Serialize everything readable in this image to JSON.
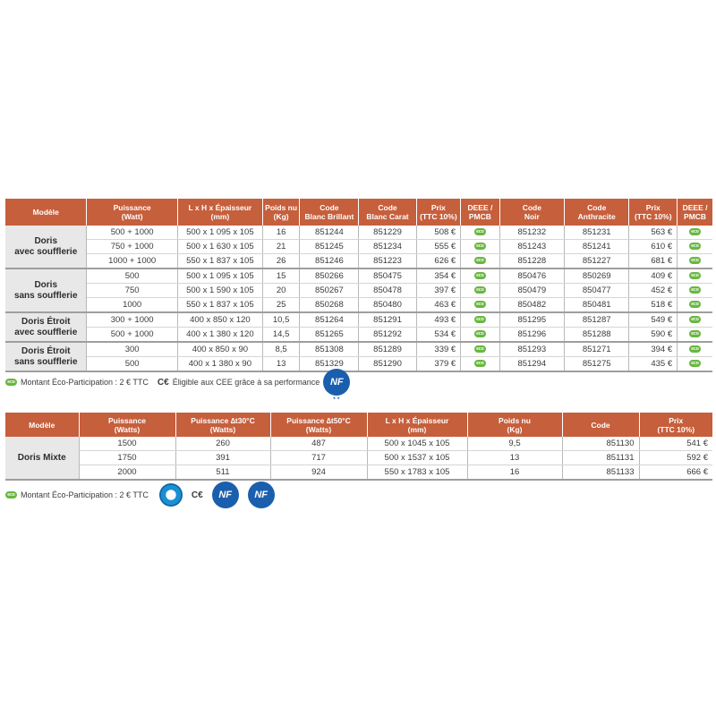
{
  "table1": {
    "headers": [
      "Modèle",
      "Puissance\n(Watt)",
      "L x H x Épaisseur\n(mm)",
      "Poids nu\n(Kg)",
      "Code\nBlanc Brillant",
      "Code\nBlanc Carat",
      "Prix\n(TTC 10%)",
      "DEEE /\nPMCB",
      "Code\nNoir",
      "Code\nAnthracite",
      "Prix\n(TTC 10%)",
      "DEEE /\nPMCB"
    ],
    "groups": [
      {
        "model": "Doris\navec soufflerie",
        "rows": [
          [
            "500 + 1000",
            "500 x 1 095 x 105",
            "16",
            "851244",
            "851229",
            "508 €",
            "851232",
            "851231",
            "563 €"
          ],
          [
            "750 + 1000",
            "500 x 1 630 x 105",
            "21",
            "851245",
            "851234",
            "555 €",
            "851243",
            "851241",
            "610 €"
          ],
          [
            "1000 + 1000",
            "550 x 1 837 x 105",
            "26",
            "851246",
            "851223",
            "626 €",
            "851228",
            "851227",
            "681 €"
          ]
        ]
      },
      {
        "model": "Doris\nsans soufflerie",
        "rows": [
          [
            "500",
            "500 x 1 095 x 105",
            "15",
            "850266",
            "850475",
            "354 €",
            "850476",
            "850269",
            "409 €"
          ],
          [
            "750",
            "500 x 1 590 x 105",
            "20",
            "850267",
            "850478",
            "397 €",
            "850479",
            "850477",
            "452 €"
          ],
          [
            "1000",
            "550 x 1 837 x 105",
            "25",
            "850268",
            "850480",
            "463 €",
            "850482",
            "850481",
            "518 €"
          ]
        ]
      },
      {
        "model": "Doris Étroit\navec soufflerie",
        "rows": [
          [
            "300 + 1000",
            "400 x 850 x 120",
            "10,5",
            "851264",
            "851291",
            "493 €",
            "851295",
            "851287",
            "549 €"
          ],
          [
            "500 + 1000",
            "400 x 1 380 x 120",
            "14,5",
            "851265",
            "851292",
            "534 €",
            "851296",
            "851288",
            "590 €"
          ]
        ]
      },
      {
        "model": "Doris Étroit\nsans soufflerie",
        "rows": [
          [
            "300",
            "400 x 850 x 90",
            "8,5",
            "851308",
            "851289",
            "339 €",
            "851293",
            "851271",
            "394 €"
          ],
          [
            "500",
            "400 x 1 380 x 90",
            "13",
            "851329",
            "851290",
            "379 €",
            "851294",
            "851275",
            "435 €"
          ]
        ]
      }
    ]
  },
  "note1": {
    "eco_badge": "eco",
    "text": "Montant Éco-Participation : 2 € TTC",
    "ce": "C€",
    "cee_text": "Éligible aux CEE grâce à sa performance",
    "nf": "NF"
  },
  "table2": {
    "headers": [
      "Modèle",
      "Puissance\n(Watts)",
      "Puissance ∆t30°C\n(Watts)",
      "Puissance ∆t50°C\n(Watts)",
      "L x H x Épaisseur\n(mm)",
      "Poids nu\n(Kg)",
      "Code",
      "Prix\n(TTC 10%)"
    ],
    "model": "Doris Mixte",
    "rows": [
      [
        "1500",
        "260",
        "487",
        "500 x 1045 x 105",
        "9,5",
        "851130",
        "541 €"
      ],
      [
        "1750",
        "391",
        "717",
        "500 x 1537 x 105",
        "13",
        "851131",
        "592 €"
      ],
      [
        "2000",
        "511",
        "924",
        "550 x 1783 x 105",
        "16",
        "851133",
        "666 €"
      ]
    ]
  },
  "note2": {
    "eco_badge": "eco",
    "text": "Montant Éco-Participation : 2 € TTC",
    "ce": "C€",
    "nf1": "NF",
    "nf2": "NF"
  }
}
